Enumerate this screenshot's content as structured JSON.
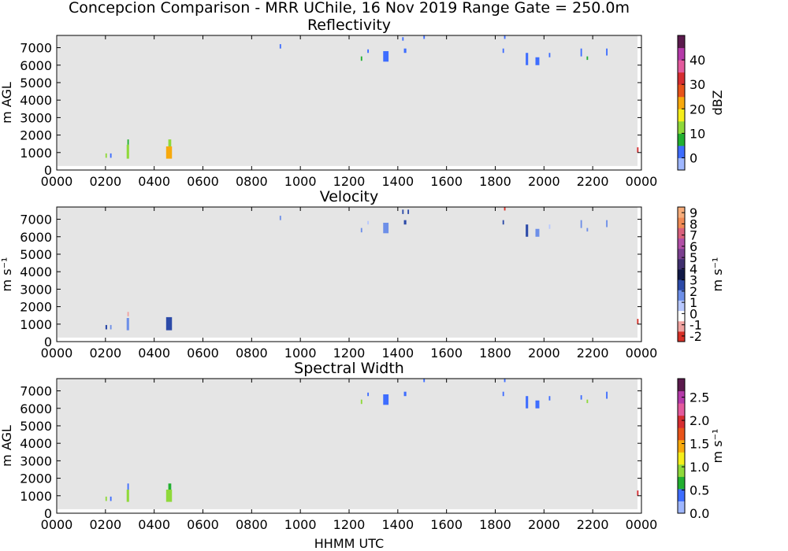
{
  "figure": {
    "title": "Concepcion Comparison - MRR UChile, 16 Nov 2019 Range Gate = 250.0m",
    "xlabel": "HHMM UTC"
  },
  "colors": {
    "background_fill": "#e5e5e5",
    "figure_bg": "#ffffff"
  },
  "chart_data": [
    {
      "type": "heatmap",
      "title": "Reflectivity",
      "ylabel": "m AGL",
      "xlim": [
        0,
        2400
      ],
      "ylim": [
        0,
        7700
      ],
      "x_ticks": [
        "0000",
        "0200",
        "0400",
        "0600",
        "0800",
        "1000",
        "1200",
        "1400",
        "1600",
        "1800",
        "2000",
        "2200",
        "0000"
      ],
      "y_ticks": [
        "0",
        "1000",
        "2000",
        "3000",
        "4000",
        "5000",
        "6000",
        "7000"
      ],
      "colorbar": {
        "label": "dBZ",
        "range": [
          -5,
          50
        ],
        "ticks": [
          "0",
          "10",
          "20",
          "30",
          "40"
        ],
        "tick_values": [
          0,
          10,
          20,
          30,
          40
        ],
        "colors": [
          "#9fb7ff",
          "#3e6dff",
          "#22b030",
          "#8fd93a",
          "#f5ee1b",
          "#f7a90d",
          "#e8541a",
          "#d62d31",
          "#e35a9d",
          "#b53aa9",
          "#5b1a4d"
        ]
      },
      "echoes": [
        {
          "t0": 200,
          "t1": 206,
          "z0": 700,
          "z1": 950,
          "value": 12
        },
        {
          "t0": 219,
          "t1": 225,
          "z0": 700,
          "z1": 950,
          "value": 2
        },
        {
          "t0": 287,
          "t1": 297,
          "z0": 650,
          "z1": 1450,
          "value": 14
        },
        {
          "t0": 290,
          "t1": 296,
          "z0": 1450,
          "z1": 1750,
          "value": 8
        },
        {
          "t0": 449,
          "t1": 473,
          "z0": 650,
          "z1": 1350,
          "value": 22
        },
        {
          "t0": 458,
          "t1": 470,
          "z0": 1350,
          "z1": 1750,
          "value": 13
        },
        {
          "t0": 915,
          "t1": 921,
          "z0": 6950,
          "z1": 7200,
          "value": 2
        },
        {
          "t0": 1248,
          "t1": 1254,
          "z0": 6250,
          "z1": 6500,
          "value": 8
        },
        {
          "t0": 1275,
          "t1": 1281,
          "z0": 6700,
          "z1": 6900,
          "value": 2
        },
        {
          "t0": 1340,
          "t1": 1362,
          "z0": 6200,
          "z1": 6800,
          "value": 1
        },
        {
          "t0": 1418,
          "t1": 1424,
          "z0": 7400,
          "z1": 7600,
          "value": 2
        },
        {
          "t0": 1425,
          "t1": 1435,
          "z0": 6700,
          "z1": 6950,
          "value": 1
        },
        {
          "t0": 1505,
          "t1": 1511,
          "z0": 7500,
          "z1": 7700,
          "value": 2
        },
        {
          "t0": 1830,
          "t1": 1836,
          "z0": 6700,
          "z1": 6950,
          "value": 1
        },
        {
          "t0": 1836,
          "t1": 1842,
          "z0": 7500,
          "z1": 7700,
          "value": 1
        },
        {
          "t0": 1925,
          "t1": 1935,
          "z0": 6000,
          "z1": 6700,
          "value": 1
        },
        {
          "t0": 1965,
          "t1": 1981,
          "z0": 6000,
          "z1": 6450,
          "value": 1
        },
        {
          "t0": 2020,
          "t1": 2026,
          "z0": 6450,
          "z1": 6700,
          "value": 2
        },
        {
          "t0": 2150,
          "t1": 2156,
          "z0": 6500,
          "z1": 6950,
          "value": 2
        },
        {
          "t0": 2175,
          "t1": 2181,
          "z0": 6300,
          "z1": 6500,
          "value": 8
        },
        {
          "t0": 2255,
          "t1": 2261,
          "z0": 6550,
          "z1": 6950,
          "value": 2
        },
        {
          "t0": 2382,
          "t1": 2388,
          "z0": 1000,
          "z1": 1300,
          "value": 30
        }
      ]
    },
    {
      "type": "heatmap",
      "title": "Velocity",
      "ylabel": "m s⁻¹",
      "ylabel_note": "",
      "xlim": [
        0,
        2400
      ],
      "ylim": [
        0,
        7700
      ],
      "x_ticks": [
        "0000",
        "0200",
        "0400",
        "0600",
        "0800",
        "1000",
        "1200",
        "1400",
        "1600",
        "1800",
        "2000",
        "2200",
        "0000"
      ],
      "y_ticks": [
        "0",
        "1000",
        "2000",
        "3000",
        "4000",
        "5000",
        "6000",
        "7000"
      ],
      "colorbar": {
        "label": "m s⁻¹",
        "range": [
          -2.5,
          9.5
        ],
        "ticks": [
          "-2",
          "-1",
          "0",
          "1",
          "2",
          "3",
          "4",
          "5",
          "6",
          "7",
          "8",
          "9"
        ],
        "tick_values": [
          -2,
          -1,
          0,
          1,
          2,
          3,
          4,
          5,
          6,
          7,
          8,
          9
        ],
        "colors": [
          "#d73027",
          "#f0a2a0",
          "#ffffff",
          "#b8c8ff",
          "#6d8fe8",
          "#2c4aa8",
          "#101846",
          "#3f2f6e",
          "#7b3f8f",
          "#b24fa6",
          "#d9607c",
          "#f08a55",
          "#f6ac7a"
        ]
      },
      "echoes": [
        {
          "t0": 200,
          "t1": 207,
          "z0": 700,
          "z1": 950,
          "value": 3
        },
        {
          "t0": 219,
          "t1": 225,
          "z0": 700,
          "z1": 950,
          "value": 1.5
        },
        {
          "t0": 287,
          "t1": 297,
          "z0": 650,
          "z1": 1350,
          "value": 1.5
        },
        {
          "t0": 290,
          "t1": 296,
          "z0": 1450,
          "z1": 1700,
          "value": -0.7
        },
        {
          "t0": 449,
          "t1": 473,
          "z0": 650,
          "z1": 1400,
          "value": 2.5
        },
        {
          "t0": 915,
          "t1": 921,
          "z0": 6950,
          "z1": 7200,
          "value": 1.5
        },
        {
          "t0": 1248,
          "t1": 1254,
          "z0": 6250,
          "z1": 6500,
          "value": 1.5
        },
        {
          "t0": 1275,
          "t1": 1281,
          "z0": 6700,
          "z1": 6900,
          "value": 0.5
        },
        {
          "t0": 1340,
          "t1": 1362,
          "z0": 6200,
          "z1": 6800,
          "value": 1.5
        },
        {
          "t0": 1418,
          "t1": 1424,
          "z0": 7300,
          "z1": 7550,
          "value": 3
        },
        {
          "t0": 1425,
          "t1": 1435,
          "z0": 6700,
          "z1": 6950,
          "value": 3
        },
        {
          "t0": 1440,
          "t1": 1446,
          "z0": 7300,
          "z1": 7550,
          "value": 3
        },
        {
          "t0": 1830,
          "t1": 1836,
          "z0": 6700,
          "z1": 6950,
          "value": 2.5
        },
        {
          "t0": 1836,
          "t1": 1842,
          "z0": 7500,
          "z1": 7700,
          "value": -1.6
        },
        {
          "t0": 1925,
          "t1": 1935,
          "z0": 6000,
          "z1": 6700,
          "value": 2.5
        },
        {
          "t0": 1965,
          "t1": 1981,
          "z0": 6000,
          "z1": 6450,
          "value": 1.5
        },
        {
          "t0": 2020,
          "t1": 2026,
          "z0": 6450,
          "z1": 6700,
          "value": 0.5
        },
        {
          "t0": 2150,
          "t1": 2156,
          "z0": 6500,
          "z1": 6950,
          "value": 1.5
        },
        {
          "t0": 2175,
          "t1": 2181,
          "z0": 6300,
          "z1": 6500,
          "value": 1.5
        },
        {
          "t0": 2255,
          "t1": 2261,
          "z0": 6550,
          "z1": 6950,
          "value": 1.5
        },
        {
          "t0": 2382,
          "t1": 2388,
          "z0": 1000,
          "z1": 1300,
          "value": -2
        }
      ]
    },
    {
      "type": "heatmap",
      "title": "Spectral Width",
      "ylabel": "m AGL",
      "xlim": [
        0,
        2400
      ],
      "ylim": [
        0,
        7700
      ],
      "x_ticks": [
        "0000",
        "0200",
        "0400",
        "0600",
        "0800",
        "1000",
        "1200",
        "1400",
        "1600",
        "1800",
        "2000",
        "2200",
        "0000"
      ],
      "y_ticks": [
        "0",
        "1000",
        "2000",
        "3000",
        "4000",
        "5000",
        "6000",
        "7000"
      ],
      "colorbar": {
        "label": "m s⁻¹",
        "range": [
          0,
          2.9
        ],
        "ticks": [
          "0.0",
          "0.5",
          "1.0",
          "1.5",
          "2.0",
          "2.5"
        ],
        "tick_values": [
          0,
          0.5,
          1.0,
          1.5,
          2.0,
          2.5
        ],
        "colors": [
          "#9fb7ff",
          "#3e6dff",
          "#22b030",
          "#8fd93a",
          "#f5ee1b",
          "#f7a90d",
          "#e8541a",
          "#d62d31",
          "#e35a9d",
          "#b53aa9",
          "#5b1a4d"
        ]
      },
      "echoes": [
        {
          "t0": 200,
          "t1": 206,
          "z0": 700,
          "z1": 950,
          "value": 0.8
        },
        {
          "t0": 219,
          "t1": 225,
          "z0": 700,
          "z1": 950,
          "value": 0.3
        },
        {
          "t0": 287,
          "t1": 297,
          "z0": 650,
          "z1": 1350,
          "value": 0.9
        },
        {
          "t0": 290,
          "t1": 296,
          "z0": 1350,
          "z1": 1700,
          "value": 0.4
        },
        {
          "t0": 449,
          "t1": 473,
          "z0": 650,
          "z1": 1350,
          "value": 1.0
        },
        {
          "t0": 458,
          "t1": 470,
          "z0": 1350,
          "z1": 1700,
          "value": 0.7
        },
        {
          "t0": 1248,
          "t1": 1254,
          "z0": 6250,
          "z1": 6500,
          "value": 0.8
        },
        {
          "t0": 1275,
          "t1": 1281,
          "z0": 6700,
          "z1": 6900,
          "value": 0.3
        },
        {
          "t0": 1340,
          "t1": 1362,
          "z0": 6200,
          "z1": 6800,
          "value": 0.3
        },
        {
          "t0": 1425,
          "t1": 1435,
          "z0": 6700,
          "z1": 6950,
          "value": 0.3
        },
        {
          "t0": 1505,
          "t1": 1511,
          "z0": 7500,
          "z1": 7700,
          "value": 0.3
        },
        {
          "t0": 1830,
          "t1": 1836,
          "z0": 6700,
          "z1": 6950,
          "value": 0.3
        },
        {
          "t0": 1836,
          "t1": 1842,
          "z0": 7500,
          "z1": 7700,
          "value": 0.3
        },
        {
          "t0": 1925,
          "t1": 1935,
          "z0": 6000,
          "z1": 6700,
          "value": 0.3
        },
        {
          "t0": 1965,
          "t1": 1981,
          "z0": 6000,
          "z1": 6450,
          "value": 0.3
        },
        {
          "t0": 2020,
          "t1": 2026,
          "z0": 6450,
          "z1": 6700,
          "value": 0.3
        },
        {
          "t0": 2150,
          "t1": 2156,
          "z0": 6500,
          "z1": 6750,
          "value": 0.3
        },
        {
          "t0": 2175,
          "t1": 2181,
          "z0": 6300,
          "z1": 6500,
          "value": 0.8
        },
        {
          "t0": 2255,
          "t1": 2261,
          "z0": 6550,
          "z1": 6950,
          "value": 0.3
        },
        {
          "t0": 2382,
          "t1": 2388,
          "z0": 1000,
          "z1": 1300,
          "value": 2.1
        }
      ]
    }
  ]
}
